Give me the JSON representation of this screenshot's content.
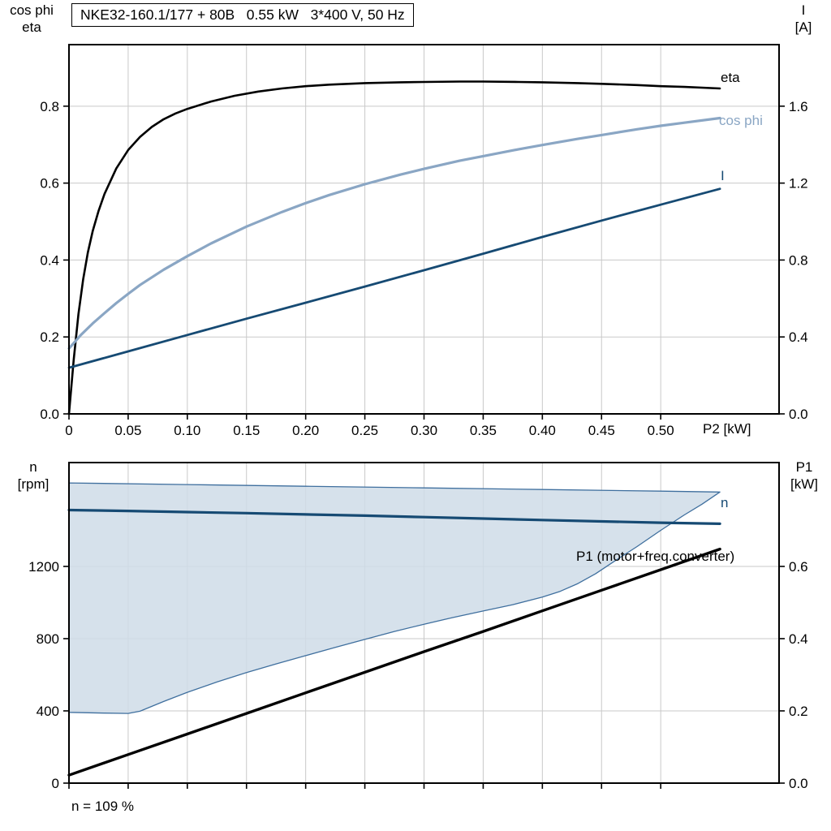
{
  "colors": {
    "grid": "#c9c9c9",
    "axis": "#000000",
    "eta": "#000000",
    "cos_phi": "#8aa6c4",
    "current": "#164a73",
    "speed": "#164a73",
    "p1": "#000000",
    "band_fill": "#cfdce8",
    "band_edge": "#3f6f9e"
  },
  "chart_data": [
    {
      "type": "line",
      "title": "NKE32-160.1/177 + 80B   0.55 kW   3*400 V, 50 Hz",
      "xlabel": "P2 [kW]",
      "axis_labels": {
        "left": [
          "cos phi",
          "eta"
        ],
        "right": [
          "I",
          "[A]"
        ]
      },
      "xlim": [
        0,
        0.6
      ],
      "xticks": [
        0,
        0.05,
        0.1,
        0.15,
        0.2,
        0.25,
        0.3,
        0.35,
        0.4,
        0.45,
        0.5
      ],
      "xtick_labels": [
        "0",
        "0.05",
        "0.10",
        "0.15",
        "0.20",
        "0.25",
        "0.30",
        "0.35",
        "0.40",
        "0.45",
        "0.50"
      ],
      "ylim_left": [
        0,
        0.96
      ],
      "yticks_left": [
        0,
        0.2,
        0.4,
        0.6,
        0.8
      ],
      "ytick_labels_left": [
        "0.0",
        "0.2",
        "0.4",
        "0.6",
        "0.8"
      ],
      "ylim_right": [
        0,
        1.92
      ],
      "yticks_right": [
        0,
        0.4,
        0.8,
        1.2,
        1.6
      ],
      "ytick_labels_right": [
        "0.0",
        "0.4",
        "0.8",
        "1.2",
        "1.6"
      ],
      "grid": true,
      "series": [
        {
          "name": "eta",
          "curve_label": "eta",
          "axis": "left",
          "color": "#000000",
          "width": 2.6,
          "points": [
            [
              0,
              0
            ],
            [
              0.004,
              0.14
            ],
            [
              0.008,
              0.26
            ],
            [
              0.012,
              0.35
            ],
            [
              0.016,
              0.42
            ],
            [
              0.02,
              0.475
            ],
            [
              0.025,
              0.528
            ],
            [
              0.03,
              0.572
            ],
            [
              0.04,
              0.638
            ],
            [
              0.05,
              0.686
            ],
            [
              0.06,
              0.72
            ],
            [
              0.07,
              0.746
            ],
            [
              0.08,
              0.766
            ],
            [
              0.09,
              0.781
            ],
            [
              0.1,
              0.793
            ],
            [
              0.12,
              0.812
            ],
            [
              0.14,
              0.827
            ],
            [
              0.16,
              0.838
            ],
            [
              0.18,
              0.846
            ],
            [
              0.2,
              0.852
            ],
            [
              0.22,
              0.856
            ],
            [
              0.25,
              0.86
            ],
            [
              0.28,
              0.862
            ],
            [
              0.3,
              0.863
            ],
            [
              0.33,
              0.864
            ],
            [
              0.35,
              0.864
            ],
            [
              0.38,
              0.863
            ],
            [
              0.4,
              0.862
            ],
            [
              0.43,
              0.86
            ],
            [
              0.45,
              0.858
            ],
            [
              0.48,
              0.855
            ],
            [
              0.5,
              0.852
            ],
            [
              0.52,
              0.85
            ],
            [
              0.55,
              0.846
            ]
          ]
        },
        {
          "name": "cos phi",
          "curve_label": "cos phi",
          "axis": "left",
          "color": "#8aa6c4",
          "width": 3.2,
          "points": [
            [
              0,
              0.17
            ],
            [
              0.01,
              0.205
            ],
            [
              0.02,
              0.235
            ],
            [
              0.03,
              0.262
            ],
            [
              0.04,
              0.288
            ],
            [
              0.05,
              0.312
            ],
            [
              0.06,
              0.335
            ],
            [
              0.08,
              0.375
            ],
            [
              0.1,
              0.41
            ],
            [
              0.12,
              0.443
            ],
            [
              0.15,
              0.487
            ],
            [
              0.18,
              0.525
            ],
            [
              0.2,
              0.548
            ],
            [
              0.22,
              0.569
            ],
            [
              0.25,
              0.597
            ],
            [
              0.28,
              0.622
            ],
            [
              0.3,
              0.637
            ],
            [
              0.33,
              0.658
            ],
            [
              0.35,
              0.67
            ],
            [
              0.38,
              0.688
            ],
            [
              0.4,
              0.699
            ],
            [
              0.43,
              0.715
            ],
            [
              0.45,
              0.725
            ],
            [
              0.48,
              0.74
            ],
            [
              0.5,
              0.749
            ],
            [
              0.52,
              0.757
            ],
            [
              0.55,
              0.769
            ]
          ]
        },
        {
          "name": "I",
          "curve_label": "I",
          "axis": "right",
          "color": "#164a73",
          "width": 2.8,
          "points": [
            [
              0,
              0.24
            ],
            [
              0.05,
              0.325
            ],
            [
              0.1,
              0.41
            ],
            [
              0.15,
              0.495
            ],
            [
              0.2,
              0.578
            ],
            [
              0.25,
              0.662
            ],
            [
              0.3,
              0.747
            ],
            [
              0.35,
              0.833
            ],
            [
              0.4,
              0.92
            ],
            [
              0.45,
              1.005
            ],
            [
              0.5,
              1.088
            ],
            [
              0.55,
              1.17
            ]
          ]
        }
      ]
    },
    {
      "type": "line",
      "title": "",
      "xlabel": "",
      "axis_labels": {
        "left": [
          "n",
          "[rpm]"
        ],
        "right": [
          "P1",
          "[kW]"
        ]
      },
      "annotation": "n = 109 %",
      "xlim": [
        0,
        0.6
      ],
      "xticks": [
        0,
        0.05,
        0.1,
        0.15,
        0.2,
        0.25,
        0.3,
        0.35,
        0.4,
        0.45,
        0.5
      ],
      "xtick_labels": [
        "",
        "",
        "",
        "",
        "",
        "",
        "",
        "",
        "",
        "",
        ""
      ],
      "ylim_left": [
        0,
        1775
      ],
      "yticks_left": [
        0,
        400,
        800,
        1200
      ],
      "ytick_labels_left": [
        "0",
        "400",
        "800",
        "1200"
      ],
      "ylim_right": [
        0,
        0.8875
      ],
      "yticks_right": [
        0,
        0.2,
        0.4,
        0.6
      ],
      "ytick_labels_right": [
        "0.0",
        "0.2",
        "0.4",
        "0.6"
      ],
      "grid": true,
      "band": {
        "name": "speed-operating-range",
        "fill": "#cfdce8",
        "edge": "#3f6f9e",
        "upper": [
          [
            0,
            1662
          ],
          [
            0.1,
            1653
          ],
          [
            0.2,
            1644
          ],
          [
            0.3,
            1635
          ],
          [
            0.4,
            1626
          ],
          [
            0.5,
            1617
          ],
          [
            0.55,
            1612
          ]
        ],
        "lower": [
          [
            0,
            392
          ],
          [
            0.03,
            388
          ],
          [
            0.05,
            386
          ],
          [
            0.06,
            398
          ],
          [
            0.08,
            452
          ],
          [
            0.1,
            503
          ],
          [
            0.125,
            560
          ],
          [
            0.15,
            612
          ],
          [
            0.175,
            660
          ],
          [
            0.2,
            706
          ],
          [
            0.225,
            752
          ],
          [
            0.25,
            796
          ],
          [
            0.275,
            840
          ],
          [
            0.3,
            880
          ],
          [
            0.325,
            918
          ],
          [
            0.35,
            953
          ],
          [
            0.375,
            988
          ],
          [
            0.4,
            1030
          ],
          [
            0.415,
            1062
          ],
          [
            0.43,
            1105
          ],
          [
            0.445,
            1160
          ],
          [
            0.46,
            1225
          ],
          [
            0.48,
            1310
          ],
          [
            0.5,
            1400
          ],
          [
            0.52,
            1485
          ],
          [
            0.535,
            1545
          ],
          [
            0.55,
            1612
          ]
        ]
      },
      "series": [
        {
          "name": "n",
          "curve_label": "n",
          "axis": "left",
          "color": "#164a73",
          "width": 3.2,
          "points": [
            [
              0,
              1512
            ],
            [
              0.05,
              1507
            ],
            [
              0.1,
              1501
            ],
            [
              0.15,
              1495
            ],
            [
              0.2,
              1488
            ],
            [
              0.25,
              1481
            ],
            [
              0.3,
              1473
            ],
            [
              0.35,
              1465
            ],
            [
              0.4,
              1457
            ],
            [
              0.45,
              1449
            ],
            [
              0.5,
              1442
            ],
            [
              0.55,
              1436
            ]
          ]
        },
        {
          "name": "P1",
          "curve_label": "P1 (motor+freq.converter)",
          "axis": "right",
          "color": "#000000",
          "width": 3.4,
          "points": [
            [
              0,
              0.022
            ],
            [
              0.05,
              0.079
            ],
            [
              0.1,
              0.136
            ],
            [
              0.15,
              0.193
            ],
            [
              0.2,
              0.25
            ],
            [
              0.25,
              0.307
            ],
            [
              0.3,
              0.364
            ],
            [
              0.35,
              0.42
            ],
            [
              0.4,
              0.477
            ],
            [
              0.45,
              0.534
            ],
            [
              0.5,
              0.591
            ],
            [
              0.55,
              0.648
            ]
          ]
        }
      ]
    }
  ]
}
